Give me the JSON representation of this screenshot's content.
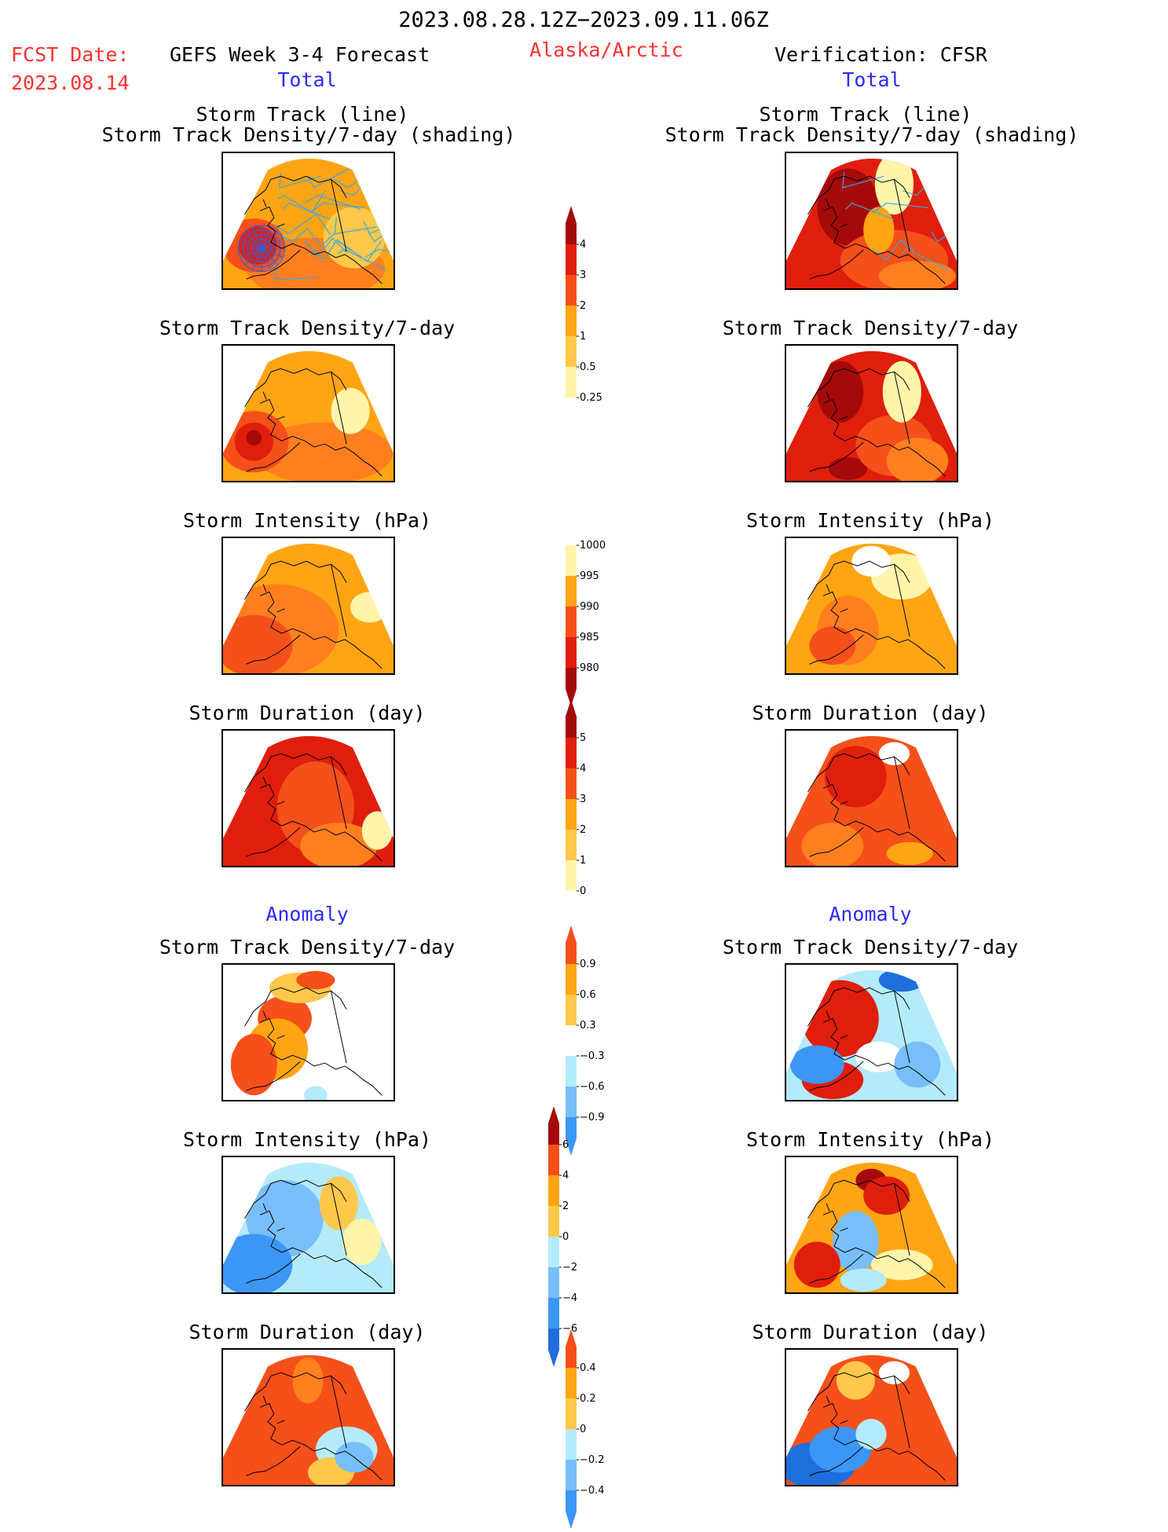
{
  "header": {
    "period": "2023.08.28.12Z−2023.09.11.06Z",
    "fcst_label": "FCST Date:",
    "fcst_date": "2023.08.14",
    "left_title": "GEFS Week 3-4 Forecast",
    "region": "Alaska/Arctic",
    "right_title": "Verification: CFSR",
    "left_section": "Total",
    "right_section": "Total",
    "anomaly_left": "Anomaly",
    "anomaly_right": "Anomaly"
  },
  "panel_titles": {
    "track_line": "Storm Track (line)",
    "track_shading": "Storm Track Density/7-day (shading)",
    "density": "Storm Track Density/7-day",
    "intensity": "Storm Intensity (hPa)",
    "duration": "Storm Duration (day)"
  },
  "colorbars": {
    "density_total": [
      "4",
      "3",
      "2",
      "1",
      "0.5",
      "0.25"
    ],
    "intensity_total": [
      "1000",
      "995",
      "990",
      "985",
      "980"
    ],
    "duration_total": [
      "5",
      "4",
      "3",
      "2",
      "1",
      "0"
    ],
    "density_anom": [
      "0.9",
      "0.6",
      "0.3",
      "−0.3",
      "−0.6",
      "−0.9"
    ],
    "intensity_anom": [
      "6",
      "4",
      "2",
      "0",
      "−2",
      "−4",
      "−6"
    ],
    "duration_anom": [
      "0.4",
      "0.2",
      "0",
      "−0.2",
      "−0.4"
    ]
  },
  "colors": {
    "dark_red": "#a50a0a",
    "red": "#e01e0c",
    "red_orange": "#f5501a",
    "orange": "#ff7f1e",
    "light_orange": "#ffa514",
    "yellow_orange": "#ffc84b",
    "pale_yellow": "#fff5aa",
    "light_blue": "#b4ebfa",
    "mid_blue": "#78befa",
    "blue": "#3c96f5",
    "dark_blue": "#1e6edc",
    "track_line": "#3aa8e0"
  }
}
